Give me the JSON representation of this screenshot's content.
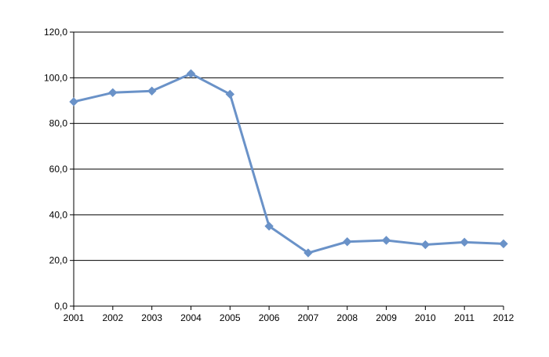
{
  "chart_data": {
    "type": "line",
    "title": "",
    "xlabel": "",
    "ylabel": "",
    "categories": [
      "2001",
      "2002",
      "2003",
      "2004",
      "2005",
      "2006",
      "2007",
      "2008",
      "2009",
      "2010",
      "2011",
      "2012"
    ],
    "series": [
      {
        "values": [
          89.5,
          93.5,
          94.2,
          101.8,
          92.8,
          35.0,
          23.3,
          28.2,
          28.8,
          26.9,
          28.0,
          27.3
        ],
        "color": "#6a92c8",
        "marker": "diamond"
      }
    ],
    "ylim": [
      0,
      120
    ],
    "yticks": [
      0,
      20,
      40,
      60,
      80,
      100,
      120
    ],
    "ytick_labels": [
      "0,0",
      "20,0",
      "40,0",
      "60,0",
      "80,0",
      "100,0",
      "120,0"
    ],
    "grid": "horizontal",
    "legend": "none"
  },
  "colors": {
    "series_line": "#6a92c8",
    "gridline": "#000000",
    "axis": "#000000",
    "background": "#ffffff"
  }
}
